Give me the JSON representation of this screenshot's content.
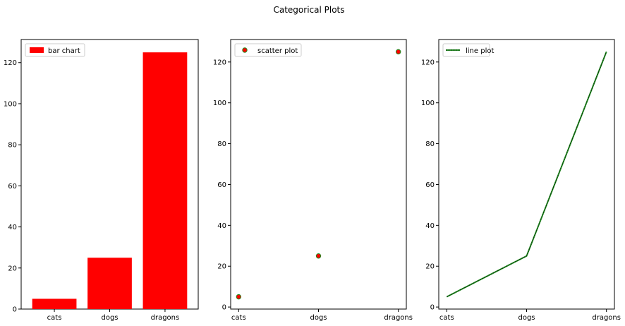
{
  "figure": {
    "title": "Categorical Plots"
  },
  "chart_data": [
    {
      "type": "bar",
      "categories": [
        "cats",
        "dogs",
        "dragons"
      ],
      "values": [
        5,
        25,
        125
      ],
      "legend": "bar chart",
      "legend_position": "upper-left",
      "ylim": [
        0,
        131.25
      ],
      "yticks": [
        0,
        20,
        40,
        60,
        80,
        100,
        120
      ],
      "color": "#ff0000"
    },
    {
      "type": "scatter",
      "categories": [
        "cats",
        "dogs",
        "dragons"
      ],
      "values": [
        5,
        25,
        125
      ],
      "legend": "scatter plot",
      "legend_position": "upper-left",
      "ylim": [
        -1,
        131
      ],
      "yticks": [
        0,
        20,
        40,
        60,
        80,
        100,
        120
      ],
      "marker_face_color": "#ff0000",
      "marker_edge_color": "#228b22"
    },
    {
      "type": "line",
      "categories": [
        "cats",
        "dogs",
        "dragons"
      ],
      "values": [
        5,
        25,
        125
      ],
      "legend": "line plot",
      "legend_position": "upper-left",
      "ylim": [
        -1,
        131
      ],
      "yticks": [
        0,
        20,
        40,
        60,
        80,
        100,
        120
      ],
      "color": "#228b22",
      "inner_line_color": "#000000"
    }
  ]
}
